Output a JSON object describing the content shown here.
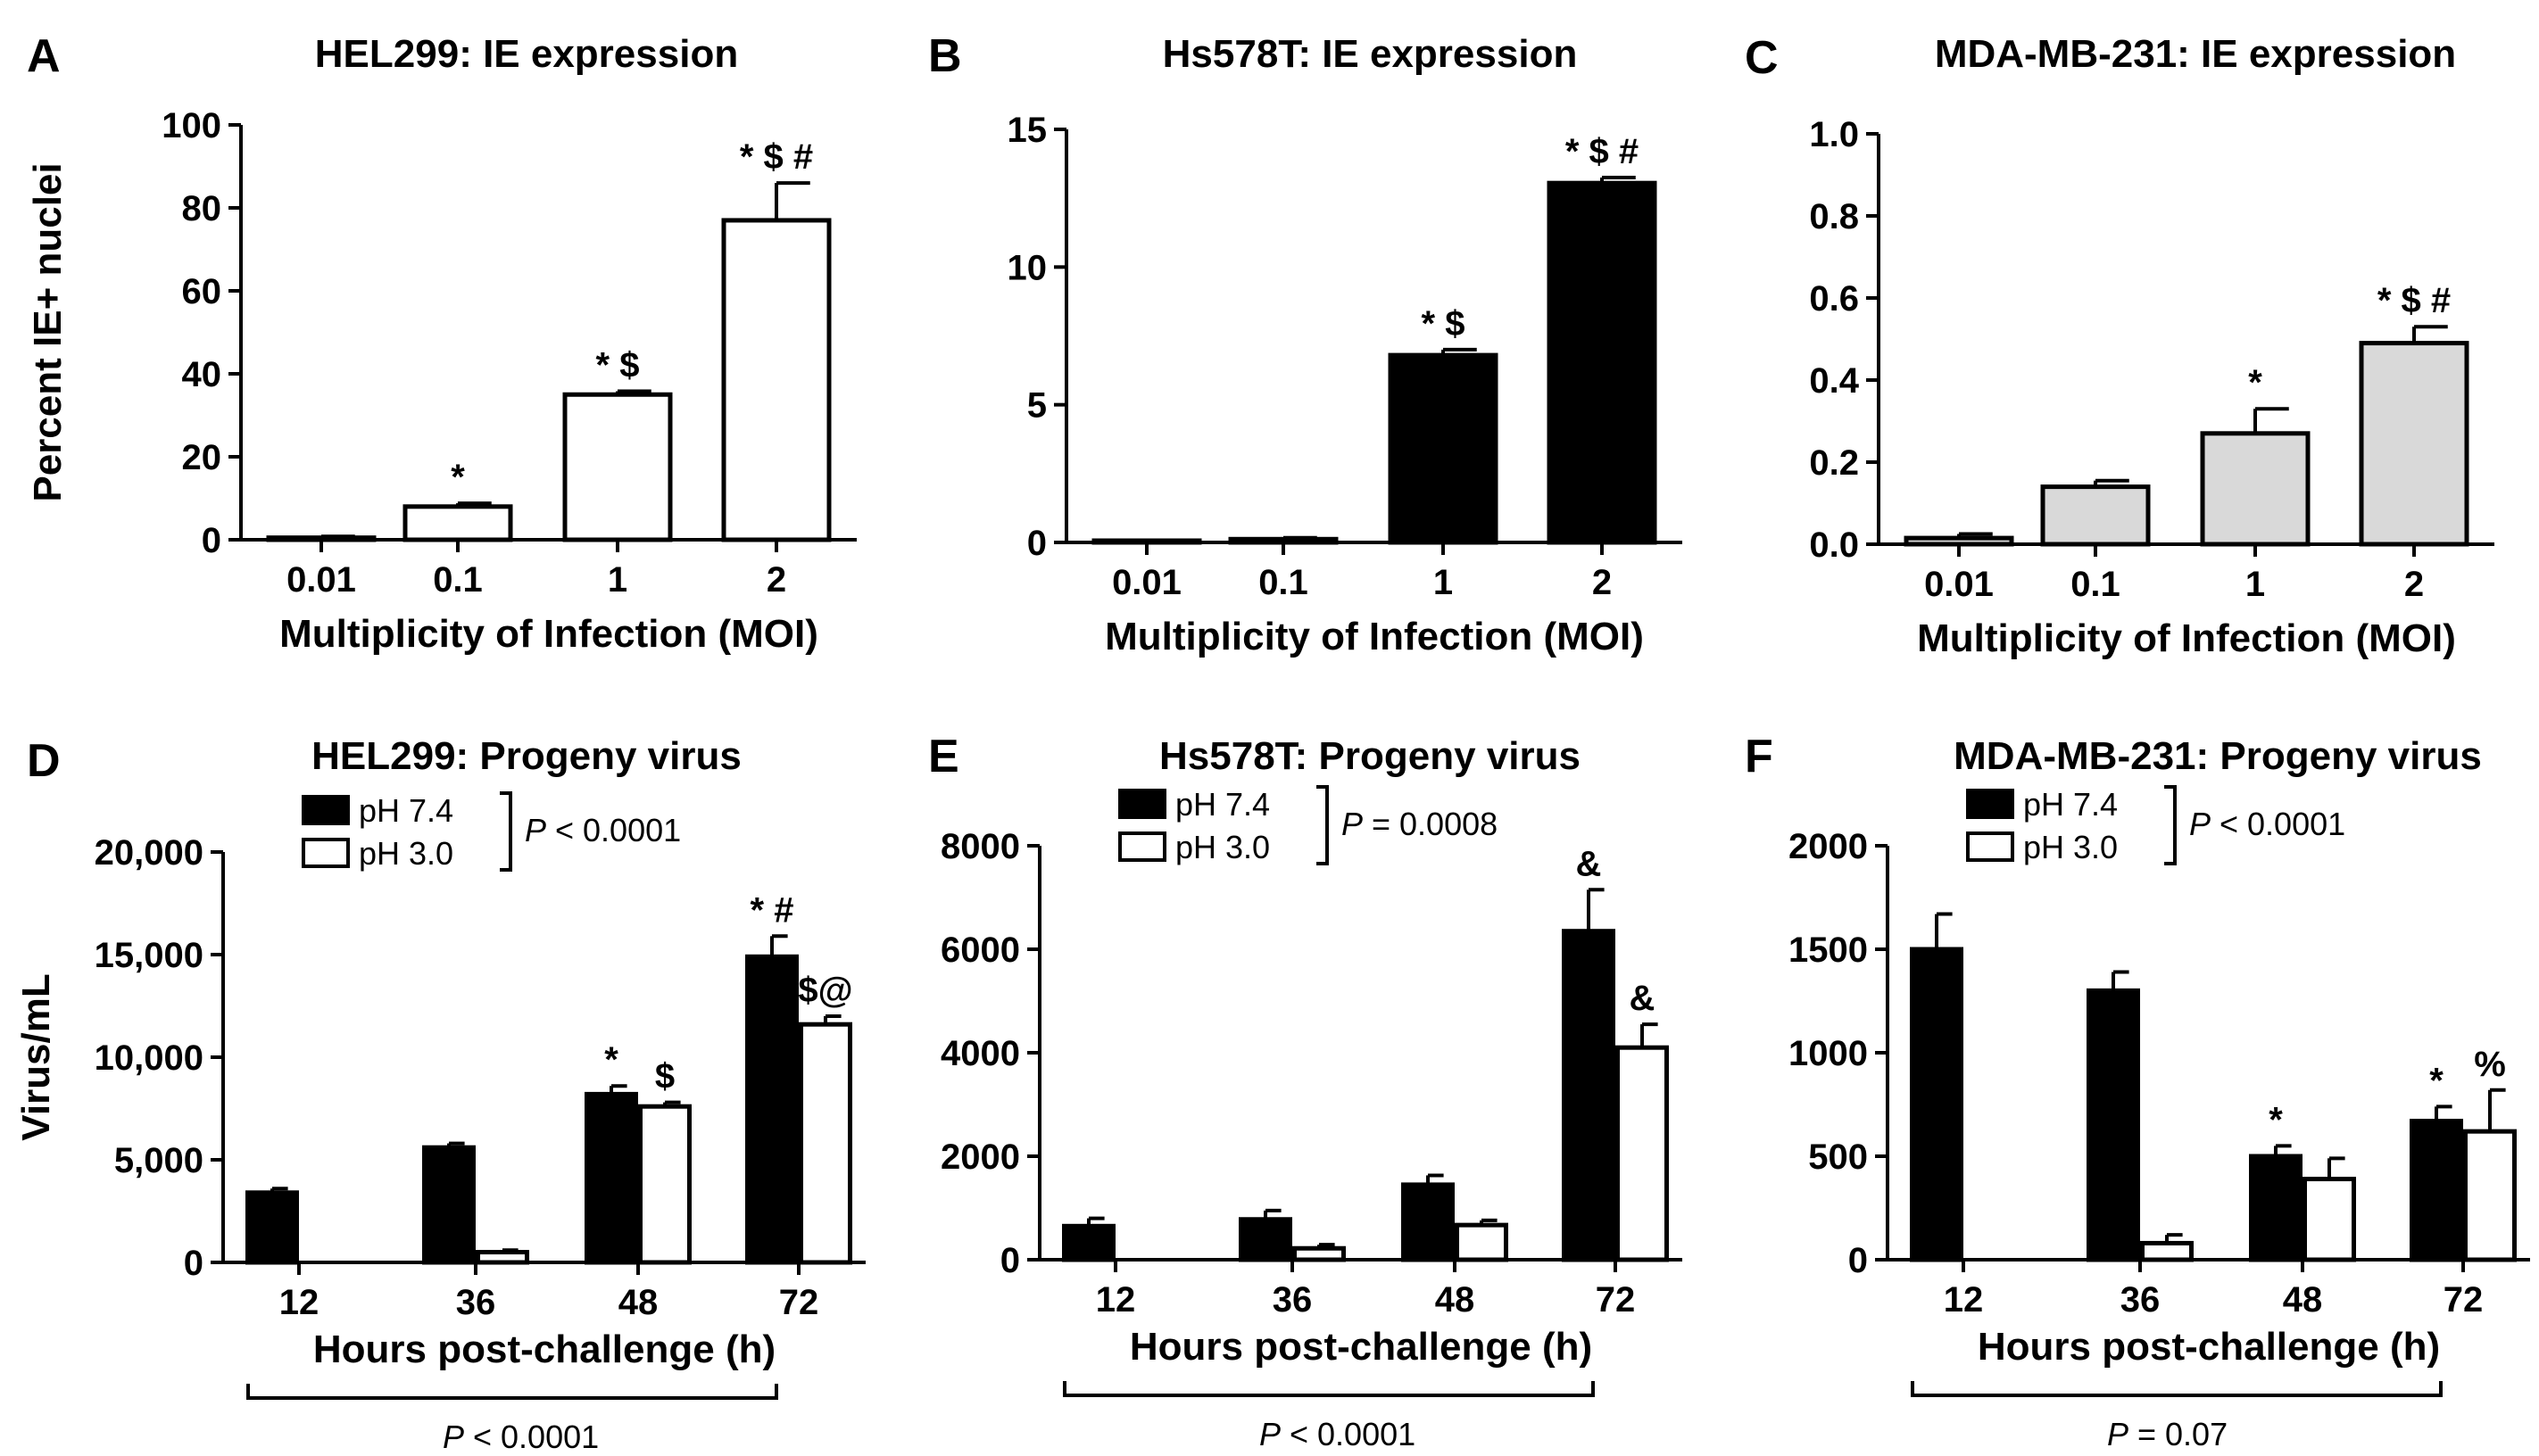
{
  "chart_data": [
    {
      "panel": "A",
      "type": "bar",
      "title": "HEL299:  IE expression",
      "xlabel": "Multiplicity of Infection (MOI)",
      "ylabel": "Percent IE+ nuclei",
      "ylim": [
        0,
        100
      ],
      "yticks": [
        0,
        20,
        40,
        60,
        80,
        100
      ],
      "ytick_labels": [
        "0",
        "20",
        "40",
        "60",
        "80",
        "100"
      ],
      "categories": [
        "0.01",
        "0.1",
        "1",
        "2"
      ],
      "values": [
        0.5,
        8,
        35,
        77
      ],
      "errors": [
        0.3,
        0.8,
        0.8,
        9
      ],
      "annotations": [
        "",
        "*",
        "* $",
        "* $ #"
      ],
      "fill": "#ffffff"
    },
    {
      "panel": "B",
      "type": "bar",
      "title": "Hs578T:  IE expression",
      "xlabel": "Multiplicity of Infection (MOI)",
      "ylabel": "",
      "ylim": [
        0,
        15
      ],
      "yticks": [
        0,
        5,
        10,
        15
      ],
      "ytick_labels": [
        "0",
        "5",
        "10",
        "15"
      ],
      "categories": [
        "0.01",
        "0.1",
        "1",
        "2"
      ],
      "values": [
        0.05,
        0.12,
        6.8,
        13.05
      ],
      "errors": [
        0.03,
        0.05,
        0.2,
        0.2
      ],
      "annotations": [
        "",
        "",
        "* $",
        "* $ #"
      ],
      "fill": "#000000"
    },
    {
      "panel": "C",
      "type": "bar",
      "title": "MDA-MB-231: IE expression",
      "xlabel": "Multiplicity of Infection (MOI)",
      "ylabel": "",
      "ylim": [
        0,
        1.0
      ],
      "yticks": [
        0,
        0.2,
        0.4,
        0.6,
        0.8,
        1.0
      ],
      "ytick_labels": [
        "0.0",
        "0.2",
        "0.4",
        "0.6",
        "0.8",
        "1.0"
      ],
      "categories": [
        "0.01",
        "0.1",
        "1",
        "2"
      ],
      "values": [
        0.015,
        0.14,
        0.27,
        0.49
      ],
      "errors": [
        0.01,
        0.015,
        0.06,
        0.04
      ],
      "annotations": [
        "",
        "",
        "*",
        "* $ #"
      ],
      "fill": "#d9d9d9"
    },
    {
      "panel": "D",
      "type": "bar",
      "title": "HEL299: Progeny virus",
      "xlabel": "Hours post-challenge (h)",
      "ylabel": "Virus/mL",
      "ylim": [
        0,
        20000
      ],
      "yticks": [
        0,
        5000,
        10000,
        15000,
        20000
      ],
      "ytick_labels": [
        "0",
        "5,000",
        "10,000",
        "15,000",
        "20,000"
      ],
      "categories": [
        "12",
        "36",
        "48",
        "72"
      ],
      "series": [
        {
          "name": "pH 7.4",
          "fill": "#000000",
          "values": [
            3400,
            5600,
            8200,
            14900
          ],
          "errors": [
            200,
            200,
            400,
            1000
          ],
          "annotations": [
            "",
            "",
            "*",
            "* #"
          ]
        },
        {
          "name": "pH 3.0",
          "fill": "#ffffff",
          "values": [
            0,
            500,
            7600,
            11600
          ],
          "errors": [
            0,
            100,
            200,
            400
          ],
          "annotations": [
            "",
            "",
            "$",
            "$@"
          ]
        }
      ],
      "legend_p_label": "P",
      "legend_p_value": "< 0.0001",
      "bottom_p_label": "P",
      "bottom_p_value": "< 0.0001"
    },
    {
      "panel": "E",
      "type": "bar",
      "title": "Hs578T: Progeny virus",
      "xlabel": "Hours post-challenge (h)",
      "ylabel": "",
      "ylim": [
        0,
        8000
      ],
      "yticks": [
        0,
        2000,
        4000,
        6000,
        8000
      ],
      "ytick_labels": [
        "0",
        "2000",
        "4000",
        "6000",
        "8000"
      ],
      "categories": [
        "12",
        "36",
        "48",
        "72"
      ],
      "series": [
        {
          "name": "pH 7.4",
          "fill": "#000000",
          "values": [
            650,
            780,
            1450,
            6350
          ],
          "errors": [
            150,
            170,
            180,
            800
          ],
          "annotations": [
            "",
            "",
            "",
            "&"
          ]
        },
        {
          "name": "pH 3.0",
          "fill": "#ffffff",
          "values": [
            0,
            220,
            670,
            4100
          ],
          "errors": [
            0,
            70,
            90,
            450
          ],
          "annotations": [
            "",
            "",
            "",
            "&"
          ]
        }
      ],
      "legend_p_label": "P",
      "legend_p_value": "= 0.0008",
      "bottom_p_label": "P",
      "bottom_p_value": "< 0.0001"
    },
    {
      "panel": "F",
      "type": "bar",
      "title": "MDA-MB-231: Progeny virus",
      "xlabel": "Hours post-challenge (h)",
      "ylabel": "",
      "ylim": [
        0,
        2000
      ],
      "yticks": [
        0,
        500,
        1000,
        1500,
        2000
      ],
      "ytick_labels": [
        "0",
        "500",
        "1000",
        "1500",
        "2000"
      ],
      "categories": [
        "12",
        "36",
        "48",
        "72"
      ],
      "series": [
        {
          "name": "pH 7.4",
          "fill": "#000000",
          "values": [
            1500,
            1300,
            500,
            670
          ],
          "errors": [
            170,
            90,
            50,
            70
          ],
          "annotations": [
            "",
            "",
            "*",
            "*"
          ]
        },
        {
          "name": "pH 3.0",
          "fill": "#ffffff",
          "values": [
            0,
            80,
            390,
            620
          ],
          "errors": [
            0,
            40,
            100,
            200
          ],
          "annotations": [
            "",
            "",
            "",
            "%"
          ]
        }
      ],
      "legend_p_label": "P",
      "legend_p_value": "< 0.0001",
      "bottom_p_label": "P",
      "bottom_p_value": "= 0.07"
    }
  ]
}
